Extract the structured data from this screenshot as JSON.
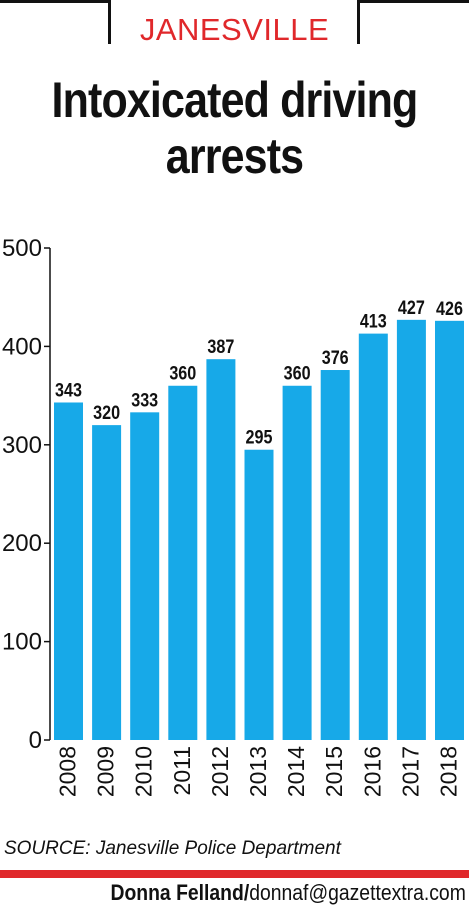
{
  "kicker": "JANESVILLE",
  "title_line1": "Intoxicated driving",
  "title_line2": "arrests",
  "chart_data": {
    "type": "bar",
    "categories": [
      "2008",
      "2009",
      "2010",
      "2011",
      "2012",
      "2013",
      "2014",
      "2015",
      "2016",
      "2017",
      "2018"
    ],
    "values": [
      343,
      320,
      333,
      360,
      387,
      295,
      360,
      376,
      413,
      427,
      426
    ],
    "title": "Intoxicated driving arrests",
    "xlabel": "",
    "ylabel": "",
    "ylim": [
      0,
      500
    ],
    "yticks": [
      0,
      100,
      200,
      300,
      400,
      500
    ],
    "grid": false,
    "legend": "none",
    "bar_color": "#17a9e8"
  },
  "source": "SOURCE: Janesville Police Department",
  "credit_name": "Donna Felland/",
  "credit_email": "donnaf@gazettextra.com",
  "colors": {
    "accent": "#e0282b",
    "bar": "#17a9e8"
  }
}
